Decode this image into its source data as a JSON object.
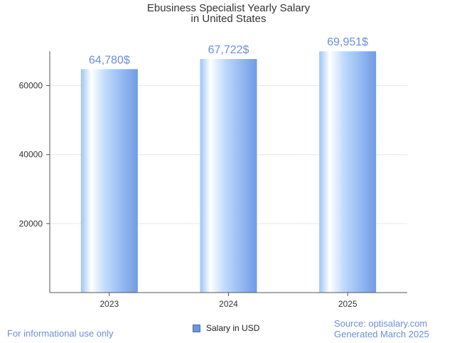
{
  "chart_data": {
    "type": "bar",
    "title_lines": [
      "Ebusiness Specialist Yearly Salary",
      "in United States"
    ],
    "categories": [
      "2023",
      "2024",
      "2025"
    ],
    "series": [
      {
        "name": "Salary in USD",
        "values": [
          64780,
          67722,
          69951
        ],
        "labels": [
          "64,780$",
          "67,722$",
          "69,951$"
        ]
      }
    ],
    "ylim": [
      0,
      70000
    ],
    "yticks": [
      20000,
      40000,
      60000
    ],
    "ytick_labels": [
      "20000",
      "40000",
      "60000"
    ],
    "grid": true,
    "legend_position": "bottom",
    "colors": {
      "bar_light": "#ffffff",
      "bar_mid": "#bcd8fb",
      "bar_dark": "#6f9be6",
      "data_label": "#6b8fd6",
      "grid": "#e6e6e6",
      "axis": "#555555"
    }
  },
  "footer": {
    "disclaimer": "For informational use only",
    "source": "Source: optisalary.com",
    "generated": "Generated March 2025"
  }
}
